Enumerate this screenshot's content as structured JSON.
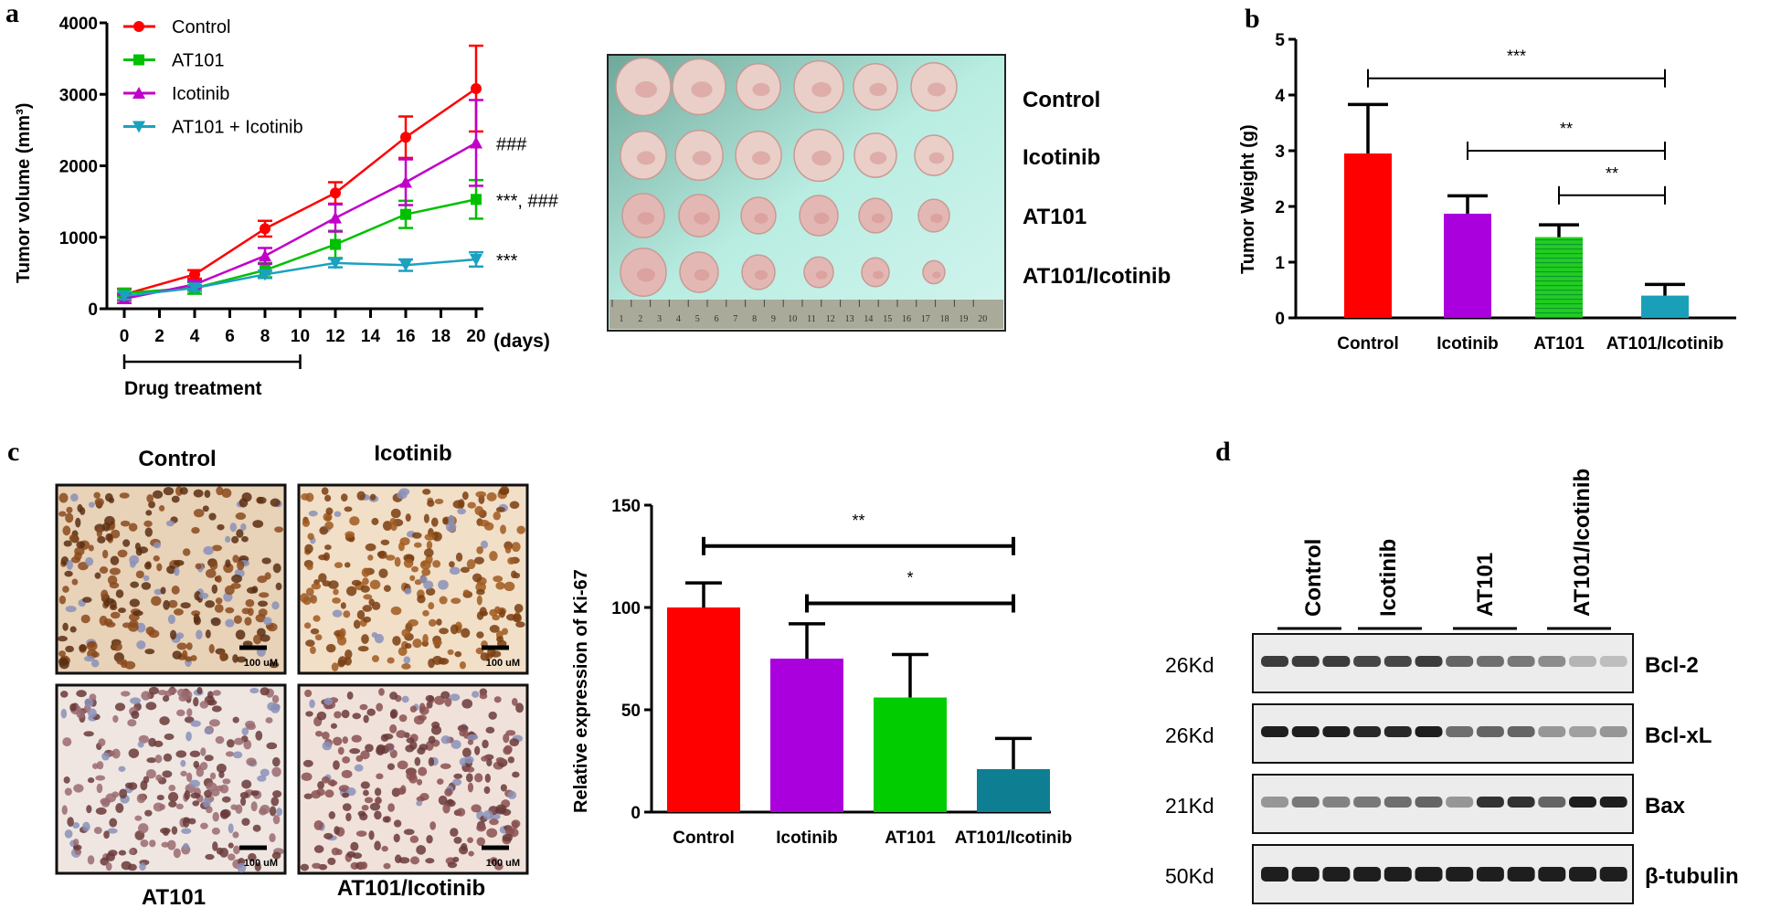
{
  "panels": {
    "a": "a",
    "b": "b",
    "c": "c",
    "d": "d"
  },
  "photo": {
    "labels": [
      "Control",
      "Icotinib",
      "AT101",
      "AT101/Icotinib"
    ],
    "ruler_numbers": [
      "1",
      "2",
      "3",
      "4",
      "5",
      "6",
      "7",
      "8",
      "9",
      "10",
      "11",
      "12",
      "13",
      "14",
      "15",
      "16",
      "17",
      "18",
      "19",
      "20"
    ]
  },
  "treatment": {
    "label": "Drug treatment",
    "days": [
      0,
      10
    ]
  },
  "ihc": {
    "titles": [
      "Control",
      "Icotinib",
      "AT101",
      "AT101/Icotinib"
    ],
    "scale_bar": "100 uM"
  },
  "blot": {
    "lanes": [
      "Control",
      "Icotinib",
      "AT101",
      "AT101/Icotinib"
    ],
    "rows": [
      {
        "name": "Bcl-2",
        "size": "26Kd",
        "intensity": [
          0.8,
          0.8,
          0.8,
          0.75,
          0.75,
          0.8,
          0.6,
          0.55,
          0.5,
          0.4,
          0.2,
          0.15
        ]
      },
      {
        "name": "Bcl-xL",
        "size": "26Kd",
        "intensity": [
          0.95,
          0.95,
          0.95,
          0.9,
          0.9,
          0.95,
          0.55,
          0.6,
          0.6,
          0.35,
          0.3,
          0.35
        ]
      },
      {
        "name": "Bax",
        "size": "21Kd",
        "intensity": [
          0.35,
          0.5,
          0.45,
          0.5,
          0.55,
          0.6,
          0.35,
          0.85,
          0.85,
          0.6,
          0.95,
          0.95
        ]
      },
      {
        "name": "β-tubulin",
        "size": "50Kd",
        "intensity": [
          0.95,
          0.95,
          0.95,
          0.95,
          0.95,
          0.95,
          0.95,
          0.95,
          0.95,
          0.95,
          0.95,
          0.95
        ]
      }
    ]
  },
  "chart_data": [
    {
      "type": "line",
      "xlabel": "(days)",
      "ylabel": "Tumor volume (mm³)",
      "x": [
        0,
        4,
        8,
        12,
        16,
        20
      ],
      "xticks": [
        0,
        2,
        4,
        6,
        8,
        10,
        12,
        14,
        16,
        18,
        20
      ],
      "ylim": [
        0,
        4000
      ],
      "yticks": [
        0,
        1000,
        2000,
        3000,
        4000
      ],
      "legend": "top-left",
      "series": [
        {
          "name": "Control",
          "color": "#ff0000",
          "marker": "circle",
          "values": [
            200,
            480,
            1120,
            1620,
            2400,
            3080
          ],
          "errors": [
            80,
            60,
            110,
            150,
            290,
            600
          ],
          "annotation": ""
        },
        {
          "name": "AT101",
          "color": "#00c000",
          "marker": "square",
          "values": [
            220,
            290,
            540,
            900,
            1320,
            1530
          ],
          "errors": [
            50,
            80,
            100,
            190,
            190,
            270
          ],
          "annotation": "***, ###"
        },
        {
          "name": "Icotinib",
          "color": "#c000c8",
          "marker": "triangle-up",
          "values": [
            140,
            340,
            740,
            1270,
            1770,
            2320
          ],
          "errors": [
            60,
            50,
            110,
            190,
            320,
            600
          ],
          "annotation": "###"
        },
        {
          "name": "AT101 + Icotinib",
          "color": "#1ba1c0",
          "marker": "triangle-down",
          "values": [
            180,
            290,
            480,
            640,
            610,
            690
          ],
          "errors": [
            50,
            40,
            50,
            60,
            80,
            100
          ],
          "annotation": "***"
        }
      ]
    },
    {
      "type": "bar",
      "ylabel": "Tumor Weight (g)",
      "categories": [
        "Control",
        "Icotinib",
        "AT101",
        "AT101/Icotinib"
      ],
      "values": [
        2.95,
        1.87,
        1.45,
        0.4
      ],
      "errors": [
        0.88,
        0.32,
        0.22,
        0.2
      ],
      "colors": [
        "#ff0000",
        "#aa00dd",
        "#22cc22",
        "#1a9fb8"
      ],
      "ylim": [
        0,
        5
      ],
      "yticks": [
        0,
        1,
        2,
        3,
        4,
        5
      ],
      "significance": [
        {
          "from": 0,
          "to": 3,
          "y": 4.3,
          "label": "***"
        },
        {
          "from": 1,
          "to": 3,
          "y": 3.0,
          "label": "**"
        },
        {
          "from": 2,
          "to": 3,
          "y": 2.2,
          "label": "**"
        }
      ]
    },
    {
      "type": "bar",
      "ylabel": "Relative expression of Ki-67",
      "categories": [
        "Control",
        "Icotinib",
        "AT101",
        "AT101/Icotinib"
      ],
      "values": [
        100,
        75,
        56,
        21
      ],
      "errors": [
        12,
        17,
        21,
        15
      ],
      "colors": [
        "#ff0000",
        "#aa00dd",
        "#00cc00",
        "#0e7f92"
      ],
      "ylim": [
        0,
        150
      ],
      "yticks": [
        0,
        50,
        100,
        150
      ],
      "significance": [
        {
          "from": 0,
          "to": 3,
          "y": 130,
          "label": "**"
        },
        {
          "from": 1,
          "to": 3,
          "y": 102,
          "label": "*"
        }
      ]
    }
  ]
}
